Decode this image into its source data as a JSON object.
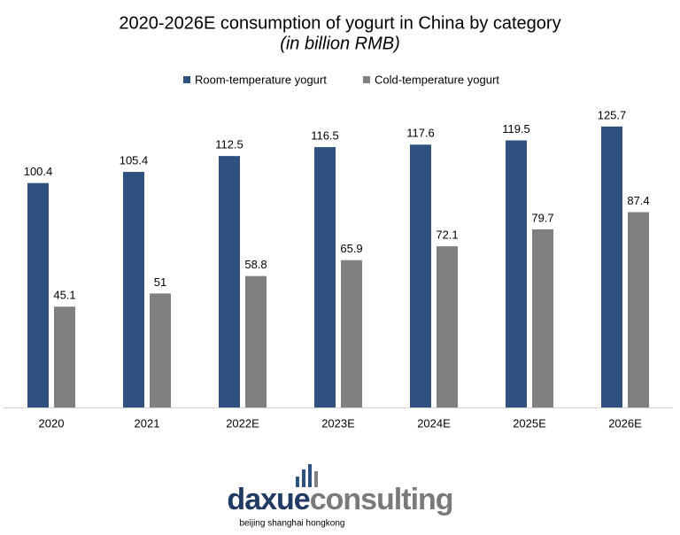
{
  "chart_data": {
    "type": "bar",
    "title": "2020-2026E consumption of yogurt in China by category",
    "subtitle": "(in billion RMB)",
    "categories": [
      "2020",
      "2021",
      "2022E",
      "2023E",
      "2024E",
      "2025E",
      "2026E"
    ],
    "series": [
      {
        "name": "Room-temperature yogurt",
        "color": "#2e5180",
        "values": [
          100.4,
          105.4,
          112.5,
          116.5,
          117.6,
          119.5,
          125.7
        ]
      },
      {
        "name": "Cold-temperature yogurt",
        "color": "#808080",
        "values": [
          45.1,
          51,
          58.8,
          65.9,
          72.1,
          79.7,
          87.4
        ]
      }
    ],
    "ylim": [
      0,
      130
    ],
    "legend": "top"
  },
  "logo": {
    "name_first": "daxue",
    "name_second": "consulting",
    "tagline": "beijing shanghai hongkong"
  }
}
